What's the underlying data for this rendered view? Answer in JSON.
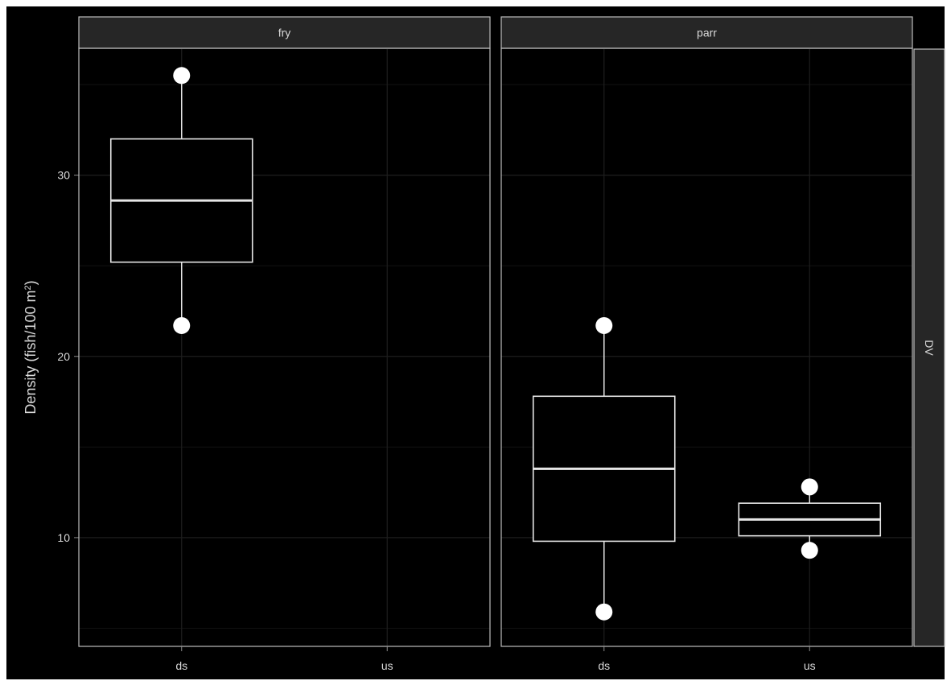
{
  "chart_data": {
    "type": "boxplot",
    "theme": {
      "background": "#000000",
      "panel_border": "#bdbdbd",
      "strip_fill": "#262626",
      "strip_text": "#d9d9d9",
      "grid_major": "#1e1e1e",
      "grid_minor": "#121212",
      "box_color": "#e6e6e6",
      "point_color": "#ffffff",
      "text_color": "#d9d9d9"
    },
    "ylabel": "Density (fish/100 m²)",
    "ylabel_base": "Density (fish/100 m",
    "ylabel_sup": "2",
    "ylabel_tail": ")",
    "ylim": [
      4,
      37
    ],
    "y_ticks": [
      10,
      20,
      30
    ],
    "y_minor_ticks": [
      5,
      15,
      25,
      35
    ],
    "x_categories": [
      "ds",
      "us"
    ],
    "row_strip": "DV",
    "panels": [
      {
        "strip": "fry",
        "boxes": [
          {
            "category": "ds",
            "lower": 21.7,
            "q1": 25.2,
            "median": 28.6,
            "q3": 32.0,
            "upper": 35.5,
            "points": [
              35.5,
              21.7
            ]
          }
        ]
      },
      {
        "strip": "parr",
        "boxes": [
          {
            "category": "ds",
            "lower": 5.9,
            "q1": 9.8,
            "median": 13.8,
            "q3": 17.8,
            "upper": 21.7,
            "points": [
              21.7,
              5.9
            ]
          },
          {
            "category": "us",
            "lower": 9.3,
            "q1": 10.1,
            "median": 11.0,
            "q3": 11.9,
            "upper": 12.8,
            "points": [
              12.8,
              9.3
            ]
          }
        ]
      }
    ]
  }
}
